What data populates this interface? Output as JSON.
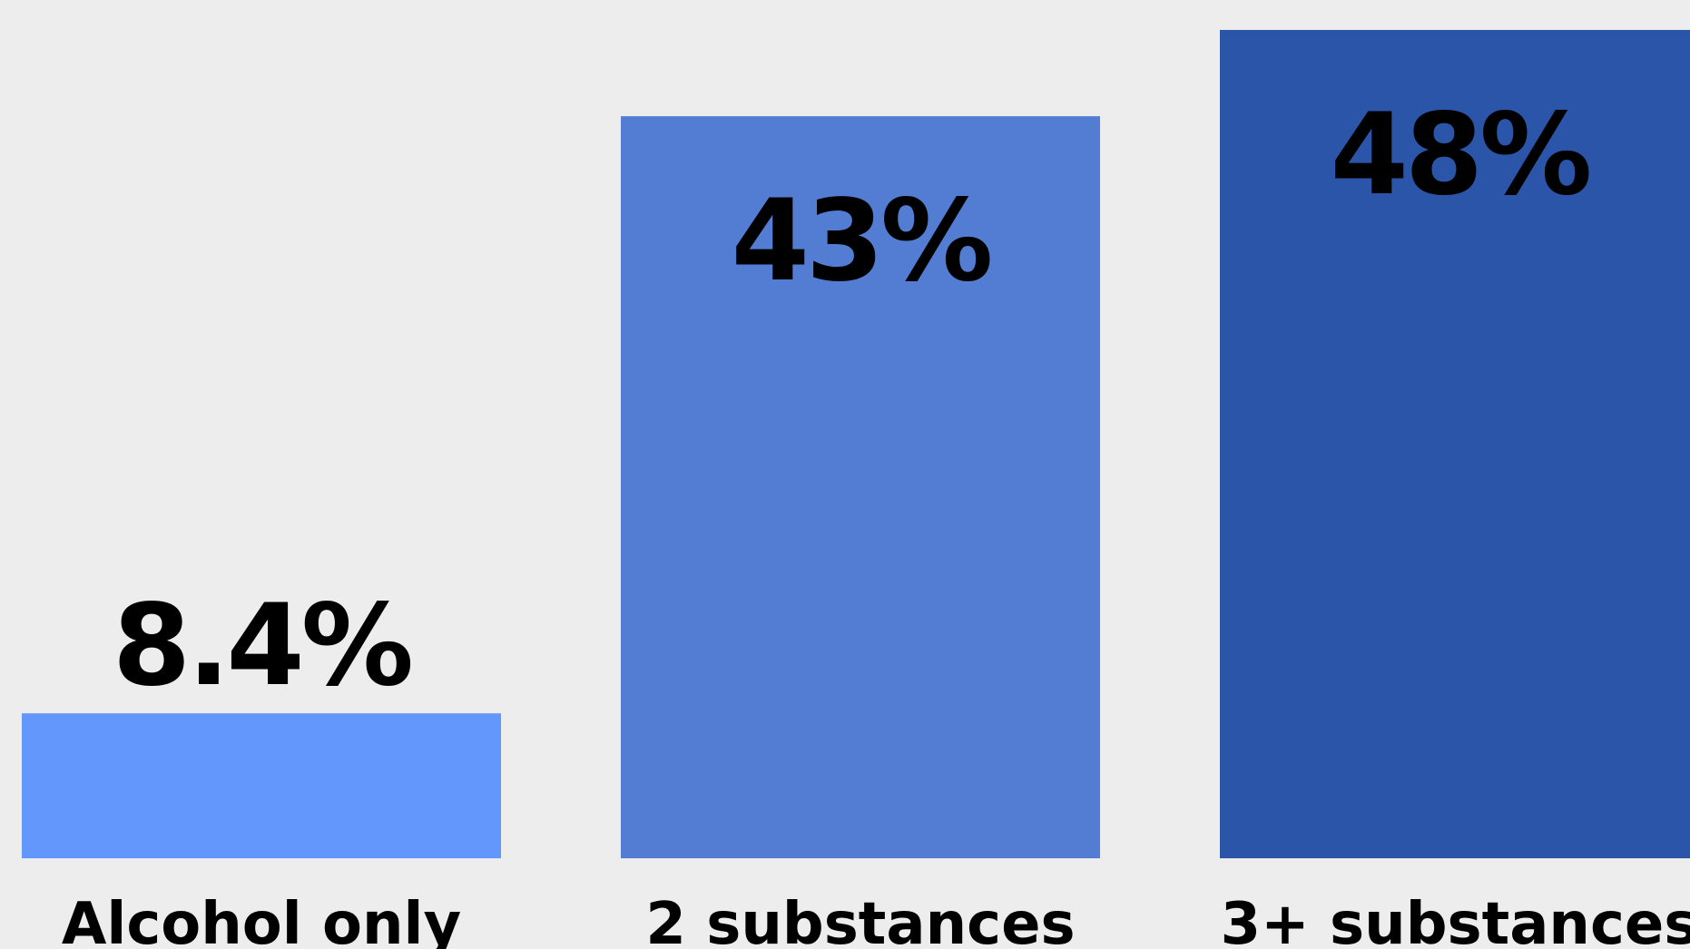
{
  "chart_data": {
    "type": "bar",
    "categories": [
      "Alcohol only",
      "2 substances",
      "3+ substances"
    ],
    "values": [
      8.4,
      43,
      48
    ],
    "value_labels": [
      "8.4%",
      "43%",
      "48%"
    ],
    "unit": "%",
    "ylim": [
      0,
      48
    ],
    "colors": [
      "#6497fc",
      "#527dd2",
      "#2a55a8"
    ],
    "grid": false,
    "legend": "none"
  }
}
